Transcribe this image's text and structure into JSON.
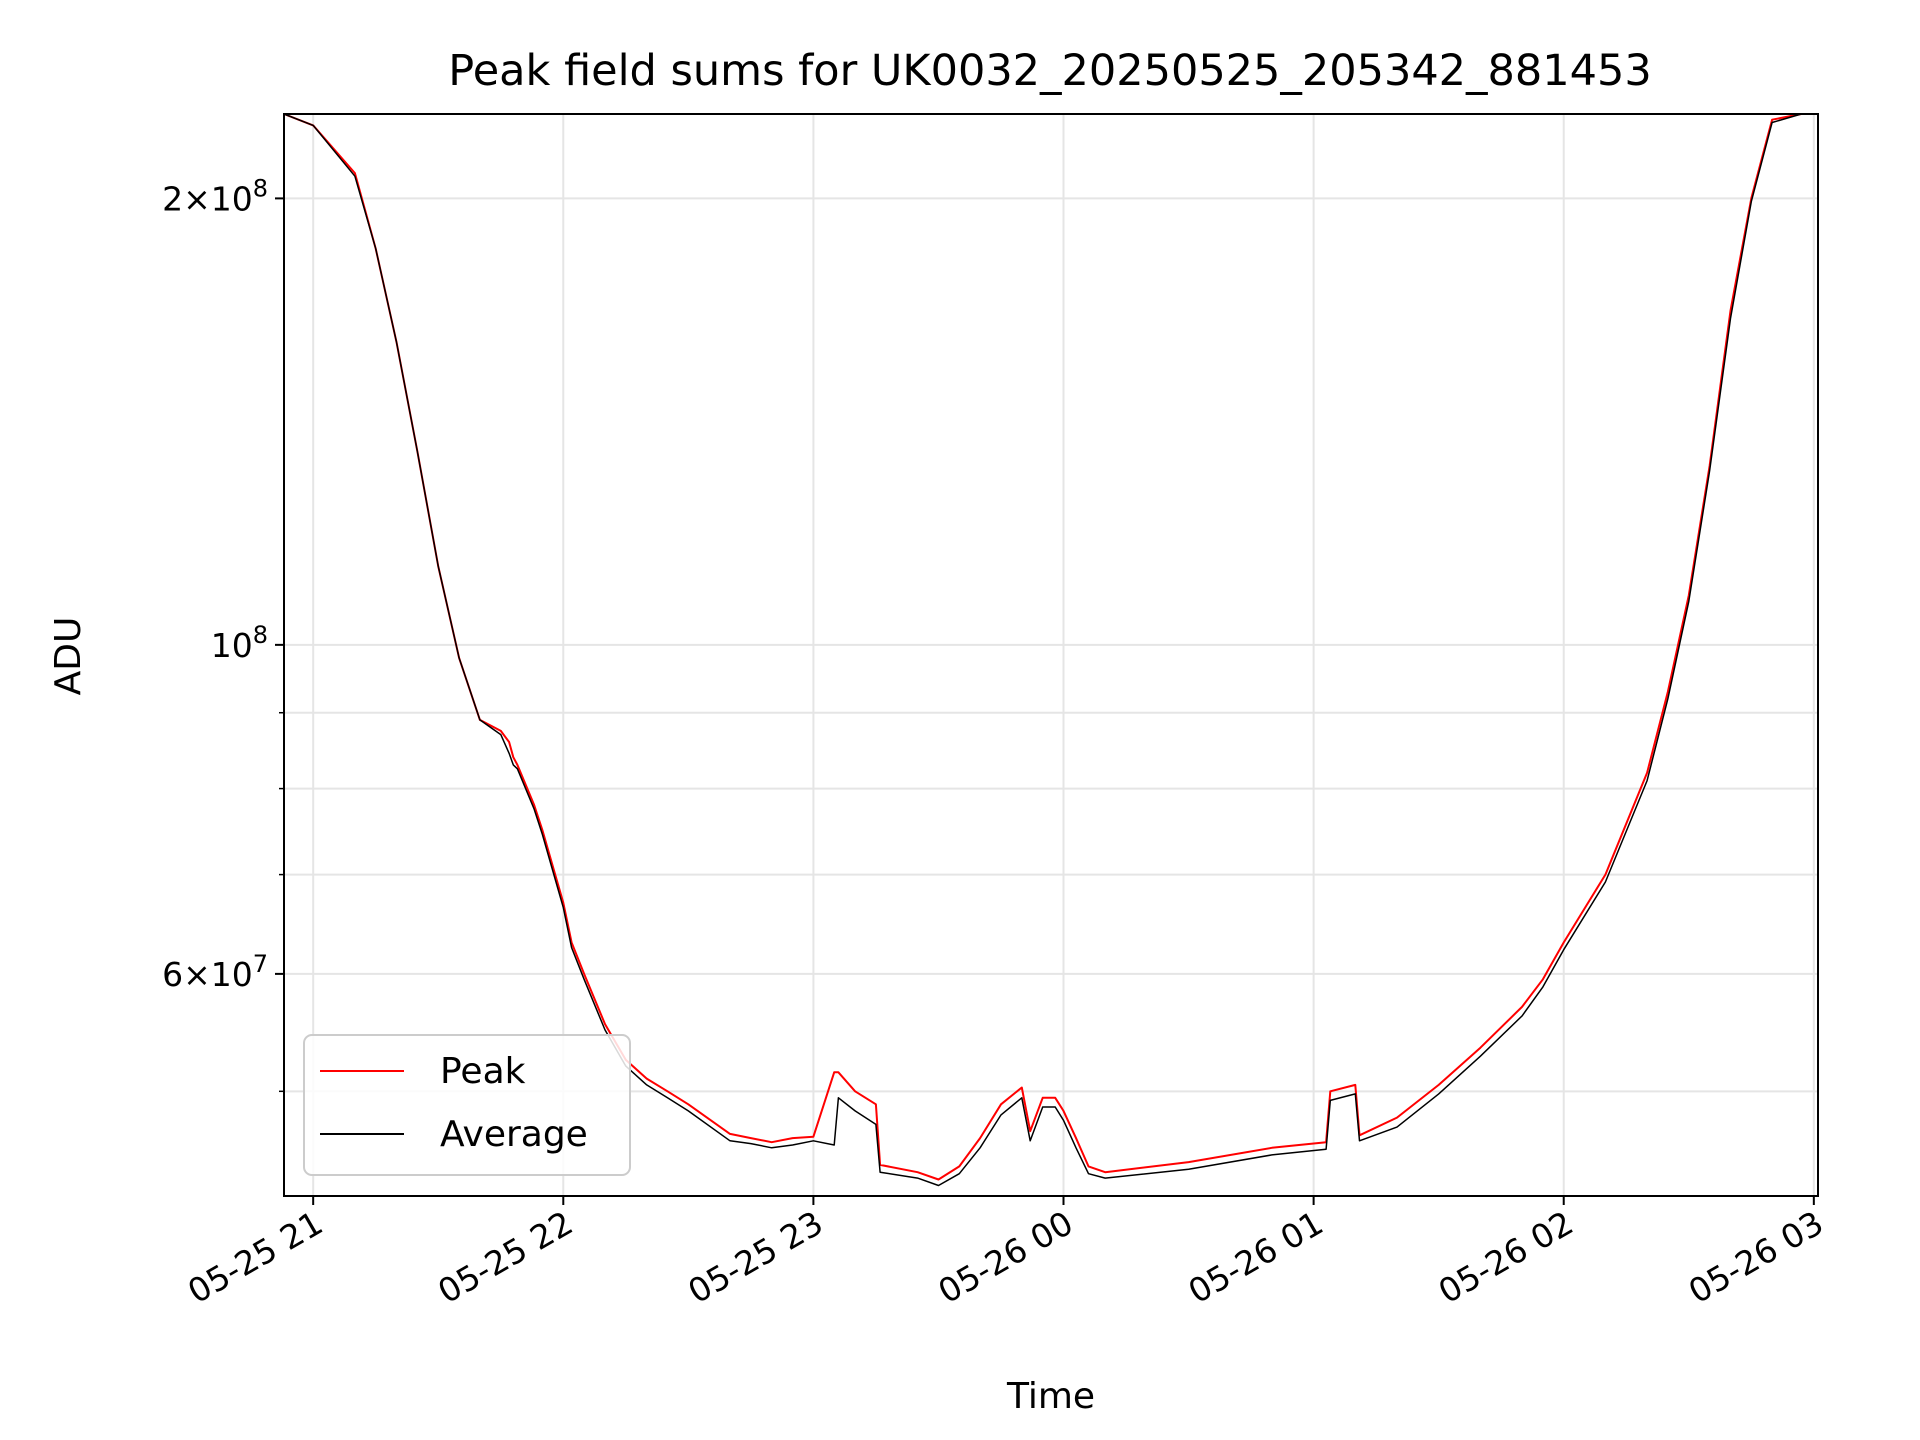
{
  "chart_data": {
    "type": "line",
    "title": "Peak field sums for UK0032_20250525_205342_881453",
    "xlabel": "Time",
    "ylabel": "ADU",
    "y_scale": "log",
    "ylim": [
      42500000,
      228000000
    ],
    "xlim": [
      "05-25 20:53",
      "05-26 03:01"
    ],
    "grid": true,
    "legend": "lower-left",
    "x_ticks": [
      "05-25 21",
      "05-25 22",
      "05-25 23",
      "05-26 00",
      "05-26 01",
      "05-26 02",
      "05-26 03"
    ],
    "y_tick_labels": [
      {
        "value": 200000000,
        "mantissa": "2",
        "exp": "8"
      },
      {
        "value": 100000000,
        "mantissa": "",
        "exp": "8"
      },
      {
        "value": 60000000,
        "mantissa": "6",
        "exp": "7"
      }
    ],
    "y_minor_ticks": [
      50000000,
      70000000,
      80000000,
      90000000
    ],
    "x": [
      "05-25 20:53",
      "05-25 21:00",
      "05-25 21:10",
      "05-25 21:15",
      "05-25 21:20",
      "05-25 21:25",
      "05-25 21:30",
      "05-25 21:35",
      "05-25 21:40",
      "05-25 21:45",
      "05-25 21:47",
      "05-25 21:48",
      "05-25 21:49",
      "05-25 21:53",
      "05-25 21:55",
      "05-25 22:00",
      "05-25 22:02",
      "05-25 22:05",
      "05-25 22:10",
      "05-25 22:15",
      "05-25 22:20",
      "05-25 22:25",
      "05-25 22:30",
      "05-25 22:40",
      "05-25 22:45",
      "05-25 22:50",
      "05-25 22:55",
      "05-25 23:00",
      "05-25 23:05",
      "05-25 23:06",
      "05-25 23:10",
      "05-25 23:15",
      "05-25 23:16",
      "05-25 23:25",
      "05-25 23:30",
      "05-25 23:35",
      "05-25 23:40",
      "05-25 23:45",
      "05-25 23:50",
      "05-25 23:52",
      "05-25 23:55",
      "05-25 23:58",
      "05-26 00:00",
      "05-26 00:03",
      "05-26 00:06",
      "05-26 00:10",
      "05-26 00:30",
      "05-26 00:50",
      "05-26 01:03",
      "05-26 01:04",
      "05-26 01:10",
      "05-26 01:11",
      "05-26 01:20",
      "05-26 01:30",
      "05-26 01:40",
      "05-26 01:50",
      "05-26 01:55",
      "05-26 02:00",
      "05-26 02:10",
      "05-26 02:20",
      "05-26 02:25",
      "05-26 02:30",
      "05-26 02:35",
      "05-26 02:40",
      "05-26 02:45",
      "05-26 02:50",
      "05-26 02:57",
      "05-26 03:01"
    ],
    "series": [
      {
        "name": "Peak",
        "color": "#ff0000",
        "values": [
          228000000,
          224000000,
          208000000,
          185000000,
          160000000,
          135000000,
          113000000,
          98000000,
          89000000,
          87500000,
          86000000,
          84000000,
          83000000,
          78000000,
          75000000,
          67000000,
          63000000,
          60000000,
          55500000,
          52500000,
          51000000,
          50000000,
          49000000,
          46800000,
          46500000,
          46200000,
          46500000,
          46600000,
          51500000,
          51500000,
          50000000,
          49000000,
          44600000,
          44100000,
          43600000,
          44500000,
          46500000,
          49000000,
          50300000,
          47000000,
          49500000,
          49500000,
          48500000,
          46500000,
          44500000,
          44100000,
          44800000,
          45800000,
          46200000,
          50000000,
          50500000,
          46700000,
          48000000,
          50500000,
          53500000,
          57000000,
          59500000,
          63000000,
          70000000,
          82000000,
          93000000,
          108000000,
          132000000,
          168000000,
          200000000,
          226000000,
          228000000,
          228000000
        ]
      },
      {
        "name": "Average",
        "color": "#000000",
        "values": [
          228000000,
          224000000,
          207000000,
          185000000,
          160000000,
          135000000,
          113000000,
          98000000,
          89000000,
          87000000,
          84500000,
          83000000,
          82500000,
          77500000,
          74500000,
          66500000,
          62500000,
          59500000,
          55000000,
          52000000,
          50500000,
          49500000,
          48500000,
          46300000,
          46100000,
          45800000,
          46000000,
          46300000,
          46000000,
          49500000,
          48500000,
          47500000,
          44100000,
          43700000,
          43200000,
          44000000,
          45800000,
          48200000,
          49500000,
          46300000,
          48800000,
          48800000,
          47800000,
          45800000,
          44000000,
          43700000,
          44300000,
          45300000,
          45700000,
          49300000,
          49800000,
          46300000,
          47300000,
          49800000,
          52800000,
          56200000,
          58800000,
          62300000,
          69200000,
          81000000,
          92000000,
          107000000,
          131000000,
          166000000,
          199000000,
          225000000,
          228000000,
          228000000
        ]
      }
    ]
  }
}
